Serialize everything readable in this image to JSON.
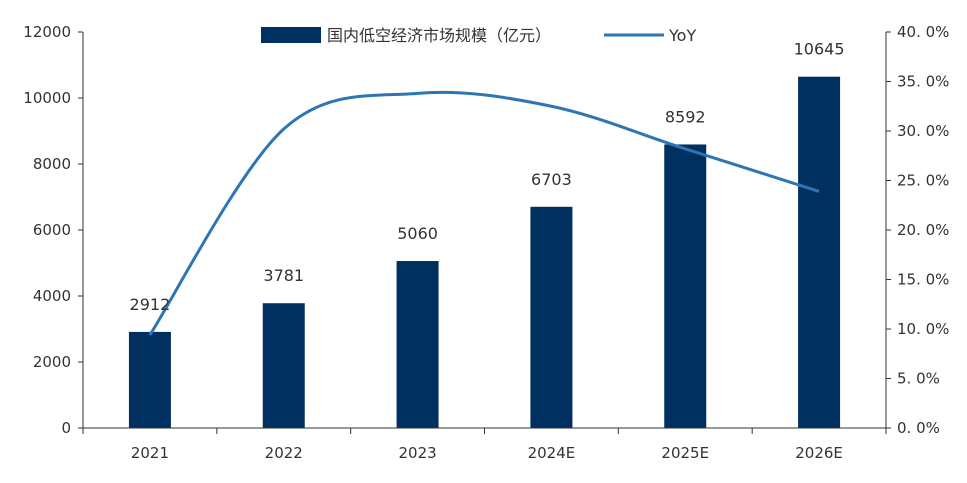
{
  "chart_data": {
    "type": "bar",
    "categories": [
      "2021",
      "2022",
      "2023",
      "2024E",
      "2025E",
      "2026E"
    ],
    "series": [
      {
        "name": "国内低空经济市场规模（亿元）",
        "type": "bar",
        "axis": "left",
        "values": [
          2912,
          3781,
          5060,
          6703,
          8592,
          10645
        ],
        "color": "#00305F"
      },
      {
        "name": "YoY",
        "type": "line",
        "axis": "right",
        "values": [
          9.4,
          30.2,
          33.8,
          32.5,
          28.2,
          23.9
        ],
        "color": "#2E75B6"
      }
    ],
    "y_left": {
      "ylim": [
        0,
        12000
      ],
      "ticks": [
        0,
        2000,
        4000,
        6000,
        8000,
        10000,
        12000
      ],
      "tick_labels": [
        "0",
        "2000",
        "4000",
        "6000",
        "8000",
        "10000",
        "12000"
      ]
    },
    "y_right": {
      "ylim": [
        0,
        40
      ],
      "ticks": [
        0,
        5,
        10,
        15,
        20,
        25,
        30,
        35,
        40
      ],
      "tick_labels": [
        "0. 0%",
        "5. 0%",
        "10. 0%",
        "15. 0%",
        "20. 0%",
        "25. 0%",
        "30. 0%",
        "35. 0%",
        "40. 0%"
      ]
    },
    "data_labels": [
      "2912",
      "3781",
      "5060",
      "6703",
      "8592",
      "10645"
    ],
    "legend_position": "top-center",
    "grid": false
  }
}
